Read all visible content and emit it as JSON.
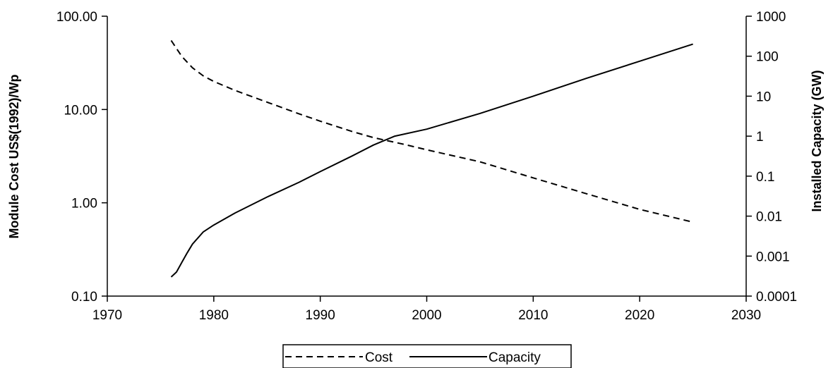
{
  "chart_data": {
    "type": "line",
    "title": "",
    "xlabel": "",
    "ylabel": "Module Cost US$(1992)/Wp",
    "y2label": "Installed Capacity (GW)",
    "xlim": [
      1970,
      2030
    ],
    "ylim": [
      0.1,
      100
    ],
    "y2lim": [
      0.0001,
      1000
    ],
    "yscale": "log",
    "y2scale": "log",
    "grid": false,
    "legend_position": "bottom-center",
    "x_tick_labels": [
      "1970",
      "1980",
      "1990",
      "2000",
      "2010",
      "2020",
      "2030"
    ],
    "y_tick_labels": [
      "0.10",
      "1.00",
      "10.00",
      "100.00"
    ],
    "y2_tick_labels": [
      "0.0001",
      "0.001",
      "0.01",
      "0.1",
      "1",
      "10",
      "100",
      "1000"
    ],
    "series": [
      {
        "name": "Cost",
        "axis": "left",
        "line_style": "dashed",
        "color": "#000000",
        "x": [
          1976,
          1977,
          1978,
          1979,
          1980,
          1982,
          1985,
          1988,
          1990,
          1993,
          1995,
          1998,
          2000,
          2005,
          2010,
          2015,
          2020,
          2025
        ],
        "y": [
          55,
          37,
          28,
          23,
          20,
          16,
          12,
          9,
          7.5,
          5.8,
          5.0,
          4.2,
          3.7,
          2.75,
          1.85,
          1.25,
          0.85,
          0.62
        ]
      },
      {
        "name": "Capacity",
        "axis": "right",
        "line_style": "solid",
        "color": "#000000",
        "x": [
          1976,
          1976.5,
          1977,
          1977.5,
          1978,
          1979,
          1980,
          1982,
          1985,
          1988,
          1990,
          1993,
          1995,
          1997,
          2000,
          2005,
          2010,
          2015,
          2020,
          2025
        ],
        "y": [
          0.0003,
          0.0004,
          0.0007,
          0.0012,
          0.002,
          0.004,
          0.006,
          0.012,
          0.03,
          0.07,
          0.13,
          0.32,
          0.6,
          1.0,
          1.5,
          3.7,
          10,
          28,
          75,
          200
        ]
      }
    ]
  }
}
